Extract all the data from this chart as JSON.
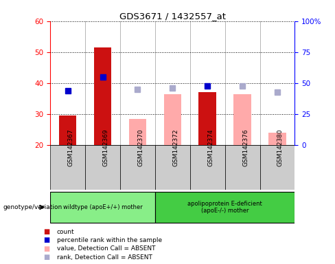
{
  "title": "GDS3671 / 1432557_at",
  "samples": [
    "GSM142367",
    "GSM142369",
    "GSM142370",
    "GSM142372",
    "GSM142374",
    "GSM142376",
    "GSM142380"
  ],
  "bar_bottom": 20,
  "ylim_left": [
    20,
    60
  ],
  "ylim_right": [
    0,
    100
  ],
  "yticks_left": [
    20,
    30,
    40,
    50,
    60
  ],
  "yticks_right": [
    0,
    25,
    50,
    75,
    100
  ],
  "ytick_labels_right": [
    "0",
    "25",
    "50",
    "75",
    "100%"
  ],
  "count_values": [
    29.5,
    51.5,
    null,
    null,
    37.0,
    null,
    null
  ],
  "count_color": "#cc1111",
  "absent_value_values": [
    null,
    null,
    28.5,
    36.5,
    null,
    36.5,
    24.0
  ],
  "absent_value_color": "#ffaaaa",
  "percentile_rank_values": [
    37.5,
    42.0,
    null,
    null,
    39.0,
    null,
    null
  ],
  "percentile_rank_color": "#0000cc",
  "absent_rank_values": [
    null,
    null,
    38.0,
    38.5,
    null,
    39.0,
    37.0
  ],
  "absent_rank_color": "#aaaacc",
  "group1_indices": [
    0,
    1,
    2
  ],
  "group2_indices": [
    3,
    4,
    5,
    6
  ],
  "group1_label": "wildtype (apoE+/+) mother",
  "group2_label": "apolipoprotein E-deficient\n(apoE-/-) mother",
  "group1_color": "#88ee88",
  "group2_color": "#44cc44",
  "genotype_label": "genotype/variation",
  "legend_items": [
    {
      "color": "#cc1111",
      "label": "count"
    },
    {
      "color": "#0000cc",
      "label": "percentile rank within the sample"
    },
    {
      "color": "#ffaaaa",
      "label": "value, Detection Call = ABSENT"
    },
    {
      "color": "#aaaacc",
      "label": "rank, Detection Call = ABSENT"
    }
  ],
  "bar_width": 0.5,
  "marker_size": 6,
  "cell_bg_color": "#cccccc",
  "plot_bg_color": "#ffffff"
}
